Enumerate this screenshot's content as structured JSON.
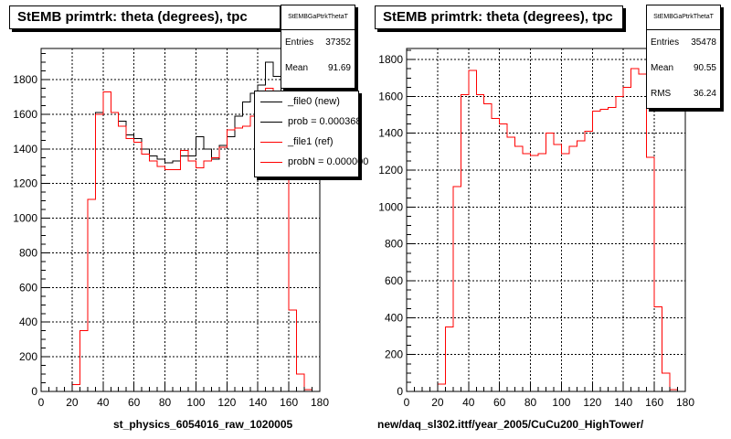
{
  "footnote": "",
  "chart_data": [
    {
      "type": "histogram",
      "title": "StEMB primtrk: theta (degrees), tpc",
      "xlabel": "st_physics_6054016_raw_1020005",
      "xlim": [
        0,
        180
      ],
      "ylim": [
        0,
        1980
      ],
      "xticks": [
        0,
        20,
        40,
        60,
        80,
        100,
        120,
        140,
        160,
        180
      ],
      "yticks": [
        0,
        200,
        400,
        600,
        800,
        1000,
        1200,
        1400,
        1600,
        1800
      ],
      "grid": true,
      "bin_width": 5,
      "bin_edges_start": 0,
      "stats": {
        "name": "StEMBGaPtrkThetaT",
        "entries_label": "Entries",
        "entries": "37352",
        "mean_label": "Mean",
        "mean": "91.69"
      },
      "legend": {
        "placement": "top-right",
        "entries": [
          {
            "label": "_file0 (new)",
            "color": "#000000",
            "style": "line"
          },
          {
            "label": "prob = 0.000368",
            "color": "#000000",
            "style": "line"
          },
          {
            "label": "_file1 (ref)",
            "color": "#ff0000",
            "style": "line"
          },
          {
            "label": "probN = 0.000000",
            "color": "#ff0000",
            "style": "line"
          }
        ]
      },
      "series": [
        {
          "name": "_file0 (new)",
          "color": "#000000",
          "values": [
            0,
            0,
            0,
            0,
            40,
            350,
            1110,
            1610,
            1730,
            1610,
            1560,
            1480,
            1460,
            1400,
            1360,
            1340,
            1320,
            1330,
            1360,
            1360,
            1470,
            1400,
            1340,
            1420,
            1470,
            1590,
            1670,
            1720,
            1770,
            1900,
            1820,
            1470,
            470,
            100,
            10,
            0
          ]
        },
        {
          "name": "_file1 (ref)",
          "color": "#ff0000",
          "values": [
            0,
            0,
            0,
            0,
            40,
            350,
            1110,
            1600,
            1730,
            1610,
            1530,
            1460,
            1440,
            1370,
            1330,
            1300,
            1280,
            1280,
            1390,
            1330,
            1290,
            1330,
            1350,
            1410,
            1510,
            1520,
            1530,
            1590,
            1640,
            1750,
            1720,
            1270,
            470,
            100,
            10,
            0
          ]
        }
      ]
    },
    {
      "type": "histogram",
      "title": "StEMB primtrk: theta (degrees), tpc",
      "xlabel": "new/daq_sl302.ittf/year_2005/CuCu200_HighTower/",
      "xlim": [
        0,
        180
      ],
      "ylim": [
        0,
        1860
      ],
      "xticks": [
        0,
        20,
        40,
        60,
        80,
        100,
        120,
        140,
        160,
        180
      ],
      "yticks": [
        0,
        200,
        400,
        600,
        800,
        1000,
        1200,
        1400,
        1600,
        1800
      ],
      "grid": true,
      "bin_width": 5,
      "bin_edges_start": 0,
      "stats": {
        "name": "StEMBGaPtrkThetaT",
        "entries_label": "Entries",
        "entries": "35478",
        "mean_label": "Mean",
        "mean": "90.55",
        "rms_label": "RMS",
        "rms": "36.24"
      },
      "series": [
        {
          "name": "",
          "color": "#ff0000",
          "values": [
            0,
            0,
            0,
            0,
            40,
            350,
            1110,
            1610,
            1740,
            1610,
            1560,
            1480,
            1450,
            1380,
            1330,
            1290,
            1280,
            1290,
            1400,
            1340,
            1290,
            1330,
            1360,
            1410,
            1520,
            1530,
            1540,
            1600,
            1650,
            1750,
            1720,
            1270,
            460,
            100,
            10,
            0
          ]
        }
      ]
    }
  ]
}
